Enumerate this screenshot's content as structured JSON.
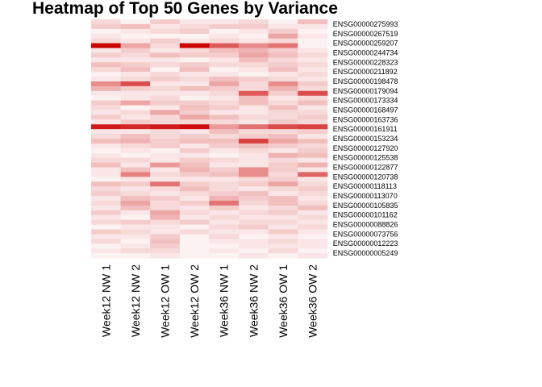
{
  "chart_data": {
    "type": "heatmap",
    "title": "Heatmap of Top 50 Genes by Variance",
    "columns": [
      "Week12 NW 1",
      "Week12 NW 2",
      "Week12 OW 1",
      "Week12 OW 2",
      "Week36 NW 1",
      "Week36 NW 2",
      "Week36 OW 1",
      "Week36 OW 2"
    ],
    "row_labels": [
      "ENSG00000275993",
      "ENSG00000267519",
      "ENSG00000259207",
      "ENSG00000244734",
      "ENSG00000228323",
      "ENSG00000211892",
      "ENSG00000198478",
      "ENSG00000179094",
      "ENSG00000173334",
      "ENSG00000168497",
      "ENSG00000163736",
      "ENSG00000161911",
      "ENSG00000153234",
      "ENSG00000127920",
      "ENSG00000125538",
      "ENSG00000122877",
      "ENSG00000120738",
      "ENSG00000118113",
      "ENSG00000113070",
      "ENSG00000105835",
      "ENSG00000101162",
      "ENSG00000088826",
      "ENSG00000073756",
      "ENSG00000012223",
      "ENSG00000005249"
    ],
    "row_count": 50,
    "color_low": "#ffffff",
    "color_high": "#cc0000",
    "values": [
      [
        0.15,
        0.05,
        0.2,
        0.1,
        0.1,
        0.15,
        0.05,
        0.25
      ],
      [
        0.2,
        0.25,
        0.1,
        0.15,
        0.2,
        0.2,
        0.1,
        0.1
      ],
      [
        0.05,
        0.1,
        0.15,
        0.2,
        0.05,
        0.1,
        0.2,
        0.05
      ],
      [
        0.1,
        0.05,
        0.05,
        0.05,
        0.1,
        0.05,
        0.35,
        0.1
      ],
      [
        0.15,
        0.1,
        0.2,
        0.1,
        0.15,
        0.1,
        0.15,
        0.05
      ],
      [
        1.0,
        0.35,
        0.15,
        1.0,
        0.65,
        0.45,
        0.55,
        0.05
      ],
      [
        0.1,
        0.2,
        0.1,
        0.15,
        0.25,
        0.3,
        0.2,
        0.1
      ],
      [
        0.2,
        0.15,
        0.25,
        0.2,
        0.2,
        0.35,
        0.25,
        0.15
      ],
      [
        0.1,
        0.1,
        0.1,
        0.05,
        0.1,
        0.25,
        0.15,
        0.1
      ],
      [
        0.25,
        0.2,
        0.15,
        0.2,
        0.15,
        0.15,
        0.2,
        0.15
      ],
      [
        0.15,
        0.25,
        0.05,
        0.25,
        0.05,
        0.1,
        0.25,
        0.1
      ],
      [
        0.05,
        0.1,
        0.15,
        0.1,
        0.1,
        0.05,
        0.1,
        0.15
      ],
      [
        0.1,
        0.15,
        0.2,
        0.15,
        0.25,
        0.2,
        0.15,
        0.1
      ],
      [
        0.45,
        0.7,
        0.1,
        0.1,
        0.35,
        0.15,
        0.45,
        0.2
      ],
      [
        0.3,
        0.2,
        0.15,
        0.25,
        0.2,
        0.15,
        0.3,
        0.15
      ],
      [
        0.1,
        0.1,
        0.1,
        0.1,
        0.15,
        0.65,
        0.2,
        0.7
      ],
      [
        0.05,
        0.1,
        0.15,
        0.05,
        0.1,
        0.25,
        0.1,
        0.15
      ],
      [
        0.2,
        0.35,
        0.2,
        0.2,
        0.15,
        0.25,
        0.15,
        0.25
      ],
      [
        0.15,
        0.05,
        0.1,
        0.25,
        0.2,
        0.1,
        0.25,
        0.1
      ],
      [
        0.1,
        0.15,
        0.35,
        0.2,
        0.1,
        0.1,
        0.15,
        0.15
      ],
      [
        0.2,
        0.1,
        0.15,
        0.35,
        0.25,
        0.15,
        0.15,
        0.2
      ],
      [
        0.1,
        0.2,
        0.15,
        0.15,
        0.15,
        0.1,
        0.2,
        0.15
      ],
      [
        0.9,
        0.85,
        0.9,
        0.95,
        0.4,
        0.55,
        0.7,
        0.75
      ],
      [
        0.1,
        0.1,
        0.15,
        0.1,
        0.25,
        0.15,
        0.15,
        0.2
      ],
      [
        0.15,
        0.25,
        0.15,
        0.2,
        0.15,
        0.2,
        0.25,
        0.1
      ],
      [
        0.25,
        0.3,
        0.2,
        0.25,
        0.25,
        0.75,
        0.35,
        0.25
      ],
      [
        0.1,
        0.15,
        0.2,
        0.1,
        0.2,
        0.25,
        0.2,
        0.15
      ],
      [
        0.05,
        0.1,
        0.05,
        0.2,
        0.1,
        0.15,
        0.1,
        0.2
      ],
      [
        0.1,
        0.05,
        0.1,
        0.1,
        0.05,
        0.1,
        0.3,
        0.25
      ],
      [
        0.15,
        0.15,
        0.1,
        0.2,
        0.15,
        0.1,
        0.15,
        0.1
      ],
      [
        0.25,
        0.1,
        0.4,
        0.25,
        0.1,
        0.1,
        0.2,
        0.3
      ],
      [
        0.1,
        0.25,
        0.1,
        0.3,
        0.2,
        0.45,
        0.2,
        0.1
      ],
      [
        0.1,
        0.5,
        0.15,
        0.2,
        0.25,
        0.45,
        0.15,
        0.6
      ],
      [
        0.05,
        0.1,
        0.1,
        0.1,
        0.1,
        0.15,
        0.2,
        0.1
      ],
      [
        0.25,
        0.2,
        0.55,
        0.2,
        0.15,
        0.2,
        0.35,
        0.15
      ],
      [
        0.15,
        0.1,
        0.15,
        0.25,
        0.15,
        0.1,
        0.15,
        0.2
      ],
      [
        0.2,
        0.15,
        0.1,
        0.15,
        0.2,
        0.25,
        0.1,
        0.15
      ],
      [
        0.1,
        0.25,
        0.2,
        0.1,
        0.3,
        0.2,
        0.25,
        0.1
      ],
      [
        0.15,
        0.35,
        0.15,
        0.2,
        0.55,
        0.15,
        0.25,
        0.15
      ],
      [
        0.1,
        0.25,
        0.15,
        0.1,
        0.2,
        0.1,
        0.15,
        0.25
      ],
      [
        0.2,
        0.1,
        0.35,
        0.15,
        0.1,
        0.15,
        0.2,
        0.1
      ],
      [
        0.1,
        0.05,
        0.3,
        0.1,
        0.15,
        0.1,
        0.1,
        0.15
      ],
      [
        0.15,
        0.2,
        0.15,
        0.2,
        0.1,
        0.15,
        0.15,
        0.1
      ],
      [
        0.05,
        0.1,
        0.1,
        0.05,
        0.15,
        0.2,
        0.1,
        0.15
      ],
      [
        0.2,
        0.15,
        0.1,
        0.15,
        0.1,
        0.1,
        0.2,
        0.1
      ],
      [
        0.1,
        0.1,
        0.2,
        0.05,
        0.15,
        0.05,
        0.1,
        0.05
      ],
      [
        0.15,
        0.05,
        0.25,
        0.05,
        0.1,
        0.1,
        0.15,
        0.1
      ],
      [
        0.05,
        0.1,
        0.2,
        0.05,
        0.05,
        0.1,
        0.1,
        0.1
      ],
      [
        0.1,
        0.15,
        0.15,
        0.05,
        0.1,
        0.05,
        0.15,
        0.05
      ],
      [
        0.05,
        0.05,
        0.1,
        0.05,
        0.05,
        0.1,
        0.05,
        0.1
      ]
    ]
  }
}
